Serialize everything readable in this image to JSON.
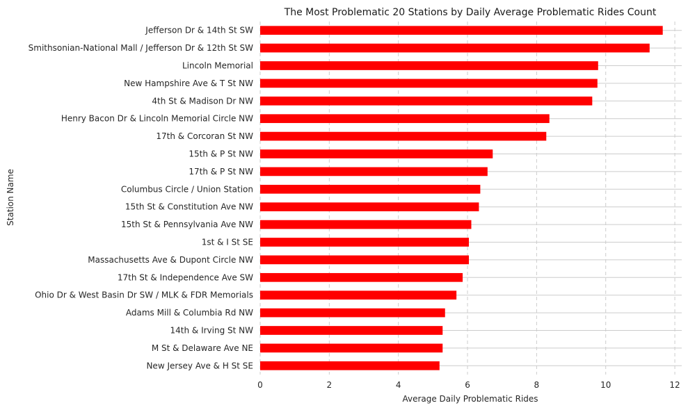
{
  "chart_data": {
    "type": "bar",
    "orientation": "horizontal",
    "title": "The Most Problematic 20 Stations by Daily Average Problematic Rides Count",
    "xlabel": "Average Daily Problematic Rides",
    "ylabel": "Station Name",
    "xlim": [
      0,
      12.2
    ],
    "xticks": [
      "0",
      "2",
      "4",
      "6",
      "8",
      "10",
      "12"
    ],
    "grid": true,
    "bar_color": "#ff0000",
    "categories": [
      "Jefferson Dr & 14th St SW",
      "Smithsonian-National Mall / Jefferson Dr & 12th St SW",
      "Lincoln Memorial",
      "New Hampshire Ave & T St NW",
      "4th St & Madison Dr NW",
      "Henry Bacon Dr & Lincoln Memorial Circle NW",
      "17th & Corcoran St NW",
      "15th & P St NW",
      "17th & P St NW",
      "Columbus Circle / Union Station",
      "15th St & Constitution Ave NW",
      "15th St & Pennsylvania Ave NW",
      "1st & I St SE",
      "Massachusetts Ave & Dupont Circle NW",
      "17th St & Independence Ave SW",
      "Ohio Dr & West Basin Dr SW / MLK & FDR Memorials",
      "Adams Mill & Columbia Rd NW",
      "14th & Irving St NW",
      "M St & Delaware Ave NE",
      "New Jersey Ave & H St SE"
    ],
    "values": [
      11.65,
      11.27,
      9.78,
      9.76,
      9.61,
      8.37,
      8.28,
      6.73,
      6.58,
      6.37,
      6.33,
      6.11,
      6.04,
      6.04,
      5.86,
      5.68,
      5.35,
      5.28,
      5.28,
      5.19
    ]
  }
}
